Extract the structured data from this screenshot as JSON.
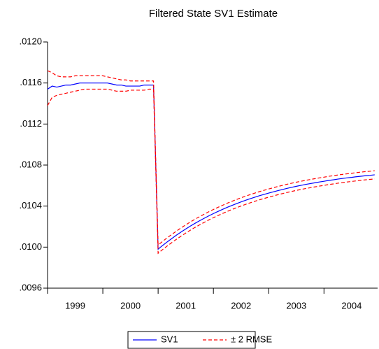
{
  "chart_data": {
    "type": "line",
    "title": "Filtered State SV1 Estimate",
    "x": [
      1999,
      1999.083,
      1999.167,
      1999.25,
      1999.333,
      1999.417,
      1999.5,
      1999.583,
      1999.667,
      1999.75,
      1999.833,
      1999.917,
      2000,
      2000.083,
      2000.167,
      2000.25,
      2000.333,
      2000.417,
      2000.5,
      2000.583,
      2000.667,
      2000.75,
      2000.833,
      2000.917,
      2001,
      2001.083,
      2001.167,
      2001.25,
      2001.333,
      2001.417,
      2001.5,
      2001.583,
      2001.667,
      2001.75,
      2001.833,
      2001.917,
      2002,
      2002.083,
      2002.167,
      2002.25,
      2002.333,
      2002.417,
      2002.5,
      2002.583,
      2002.667,
      2002.75,
      2002.833,
      2002.917,
      2003,
      2003.083,
      2003.167,
      2003.25,
      2003.333,
      2003.417,
      2003.5,
      2003.583,
      2003.667,
      2003.75,
      2003.833,
      2003.917,
      2004,
      2004.083,
      2004.167,
      2004.25,
      2004.333,
      2004.417,
      2004.5,
      2004.583,
      2004.667,
      2004.75,
      2004.833,
      2004.917
    ],
    "xlim": [
      1999,
      2004.97
    ],
    "xticks": [
      {
        "value": 1999,
        "label": "1999"
      },
      {
        "value": 2000,
        "label": "2000"
      },
      {
        "value": 2001,
        "label": "2001"
      },
      {
        "value": 2002,
        "label": "2002"
      },
      {
        "value": 2003,
        "label": "2003"
      },
      {
        "value": 2004,
        "label": "2004"
      }
    ],
    "ylim": [
      0.0096,
      0.012
    ],
    "yticks": [
      {
        "value": 0.0096,
        "label": ".0096"
      },
      {
        "value": 0.01,
        "label": ".0100"
      },
      {
        "value": 0.0104,
        "label": ".0104"
      },
      {
        "value": 0.0108,
        "label": ".0108"
      },
      {
        "value": 0.0112,
        "label": ".0112"
      },
      {
        "value": 0.0116,
        "label": ".0116"
      },
      {
        "value": 0.012,
        "label": ".0120"
      }
    ],
    "series": [
      {
        "name": "SV1",
        "color": "#0000ff",
        "values": [
          0.01154,
          0.01157,
          0.01156,
          0.01157,
          0.01158,
          0.01158,
          0.01159,
          0.0116,
          0.0116,
          0.0116,
          0.0116,
          0.0116,
          0.0116,
          0.0116,
          0.01159,
          0.01158,
          0.01158,
          0.01157,
          0.01157,
          0.01157,
          0.01157,
          0.01158,
          0.01158,
          0.01158,
          0.00998,
          0.010017,
          0.010052,
          0.010085,
          0.010117,
          0.010148,
          0.010177,
          0.010205,
          0.010232,
          0.010257,
          0.010281,
          0.010305,
          0.010327,
          0.010348,
          0.010368,
          0.010388,
          0.010406,
          0.010424,
          0.010441,
          0.010457,
          0.010472,
          0.010487,
          0.010501,
          0.010514,
          0.010527,
          0.010539,
          0.010551,
          0.010562,
          0.010573,
          0.010583,
          0.010593,
          0.010602,
          0.010611,
          0.010619,
          0.010627,
          0.010635,
          0.010642,
          0.01065,
          0.010656,
          0.010663,
          0.010669,
          0.010675,
          0.01068,
          0.010686,
          0.010691,
          0.010696,
          0.0107,
          0.010705
        ]
      },
      {
        "name": "± 2 RMSE",
        "color": "#ff0000",
        "dashed": true,
        "upper": [
          0.01172,
          0.0117,
          0.01167,
          0.01166,
          0.01166,
          0.01166,
          0.01167,
          0.01167,
          0.01167,
          0.01167,
          0.01167,
          0.01167,
          0.01167,
          0.01166,
          0.01165,
          0.01164,
          0.01163,
          0.01163,
          0.01162,
          0.01162,
          0.01162,
          0.01162,
          0.01162,
          0.01162,
          0.01002,
          0.010057,
          0.010092,
          0.010125,
          0.010157,
          0.010188,
          0.010217,
          0.010245,
          0.010272,
          0.010297,
          0.010321,
          0.010345,
          0.010367,
          0.010388,
          0.010408,
          0.010428,
          0.010446,
          0.010464,
          0.010481,
          0.010497,
          0.010512,
          0.010527,
          0.010541,
          0.010554,
          0.010567,
          0.010579,
          0.010591,
          0.010602,
          0.010613,
          0.010623,
          0.010633,
          0.010642,
          0.010651,
          0.010659,
          0.010667,
          0.010675,
          0.010682,
          0.01069,
          0.010696,
          0.010703,
          0.010709,
          0.010715,
          0.01072,
          0.010726,
          0.010731,
          0.010736,
          0.01074,
          0.010745
        ],
        "lower": [
          0.01138,
          0.01146,
          0.01148,
          0.01149,
          0.0115,
          0.01151,
          0.01152,
          0.01153,
          0.01154,
          0.01154,
          0.01154,
          0.01154,
          0.01154,
          0.01154,
          0.01153,
          0.01152,
          0.01152,
          0.01152,
          0.01153,
          0.01153,
          0.01153,
          0.01153,
          0.01154,
          0.01154,
          0.00994,
          0.009977,
          0.010012,
          0.010045,
          0.010077,
          0.010108,
          0.010137,
          0.010165,
          0.010192,
          0.010217,
          0.010241,
          0.010265,
          0.010287,
          0.010308,
          0.010328,
          0.010348,
          0.010366,
          0.010384,
          0.010401,
          0.010417,
          0.010432,
          0.010447,
          0.010461,
          0.010474,
          0.010487,
          0.010499,
          0.010511,
          0.010522,
          0.010533,
          0.010543,
          0.010553,
          0.010562,
          0.010571,
          0.010579,
          0.010587,
          0.010595,
          0.010602,
          0.01061,
          0.010616,
          0.010623,
          0.010629,
          0.010635,
          0.01064,
          0.010646,
          0.010651,
          0.010656,
          0.01066,
          0.010665
        ]
      }
    ]
  }
}
